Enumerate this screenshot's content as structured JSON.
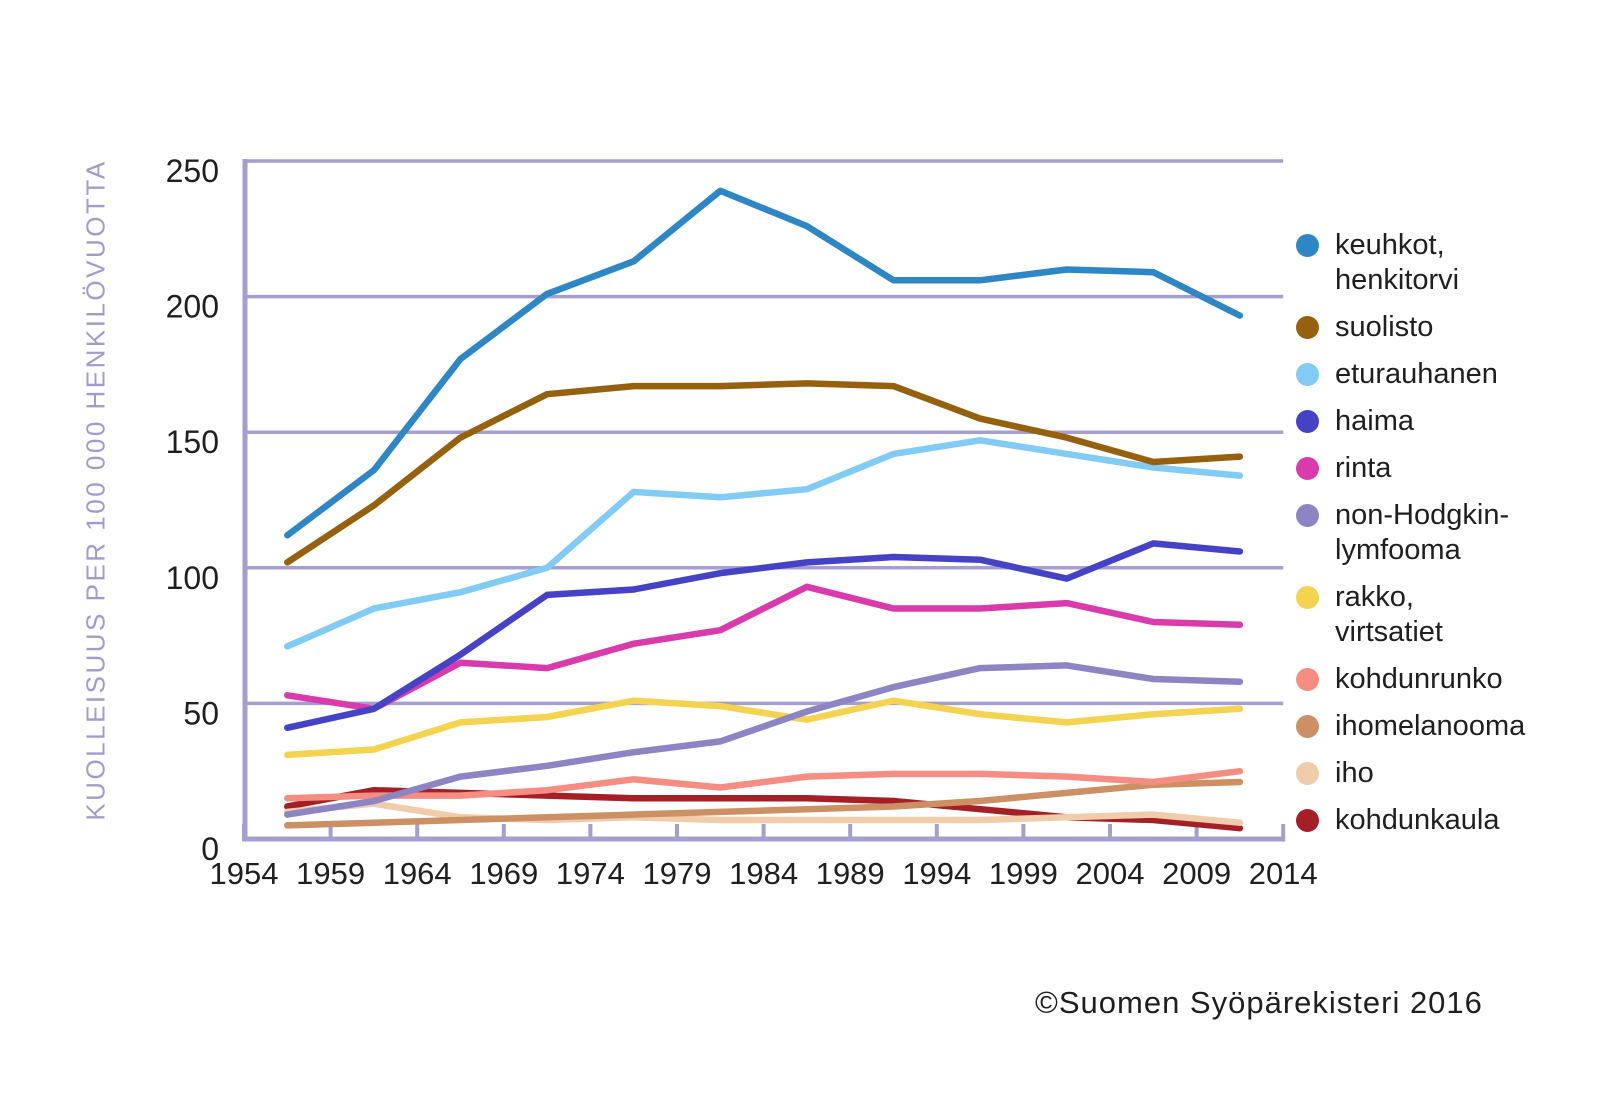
{
  "page": {
    "copyright": "©Suomen Syöpärekisteri 2016"
  },
  "colors": {
    "grid": "#a49ed1",
    "axis": "#a49ed1",
    "text": "#1f1f1f",
    "axis_title": "#a29bce",
    "background": "#ffffff"
  },
  "chart_data": {
    "type": "line",
    "title": "",
    "xlabel": "",
    "ylabel": "KUOLLEISUUS PER 100 000 HENKILÖVUOTTA",
    "grid": true,
    "legend_position": "right",
    "x_axis": {
      "range": [
        1954,
        2014
      ],
      "tick_labels": [
        "1954",
        "1959",
        "1964",
        "1969",
        "1974",
        "1979",
        "1984",
        "1989",
        "1994",
        "1999",
        "2004",
        "2009",
        "2014"
      ]
    },
    "y_axis": {
      "range": [
        0,
        250
      ],
      "ticks": [
        0,
        50,
        100,
        150,
        200,
        250
      ],
      "tick_labels": [
        "0",
        "50",
        "100",
        "150",
        "200",
        "250"
      ]
    },
    "x": [
      1956.5,
      1961.5,
      1966.5,
      1971.5,
      1976.5,
      1981.5,
      1986.5,
      1991.5,
      1996.5,
      2001.5,
      2006.5,
      2011.5
    ],
    "series": [
      {
        "name": "keuhkot, henkitorvi",
        "slug": "keuhkot-henkitorvi",
        "legend_lines": [
          "keuhkot,",
          "henkitorvi"
        ],
        "color": "#2f86c4",
        "values": [
          112,
          136,
          177,
          201,
          213,
          239,
          226,
          206,
          206,
          210,
          209,
          193
        ]
      },
      {
        "name": "suolisto",
        "slug": "suolisto",
        "legend_lines": [
          "suolisto"
        ],
        "color": "#96610f",
        "values": [
          102,
          123,
          148,
          164,
          167,
          167,
          168,
          167,
          155,
          148,
          139,
          141
        ]
      },
      {
        "name": "eturauhanen",
        "slug": "eturauhanen",
        "legend_lines": [
          "eturauhanen"
        ],
        "color": "#82cbf5",
        "values": [
          71,
          85,
          91,
          100,
          128,
          126,
          129,
          142,
          147,
          142,
          137,
          134
        ]
      },
      {
        "name": "haima",
        "slug": "haima",
        "legend_lines": [
          "haima"
        ],
        "color": "#4642c6",
        "values": [
          41,
          48,
          68,
          90,
          92,
          98,
          102,
          104,
          103,
          96,
          109,
          106
        ]
      },
      {
        "name": "rinta",
        "slug": "rinta",
        "legend_lines": [
          "rinta"
        ],
        "color": "#d93bac",
        "values": [
          53,
          48,
          65,
          63,
          72,
          77,
          93,
          85,
          85,
          87,
          80,
          79
        ]
      },
      {
        "name": "non-Hodgkin-lymfooma",
        "slug": "non-hodgkin-lymfooma",
        "legend_lines": [
          "non-Hodgkin-",
          "lymfooma"
        ],
        "color": "#8d85c3",
        "values": [
          9,
          14,
          23,
          27,
          32,
          36,
          47,
          56,
          63,
          64,
          59,
          58
        ]
      },
      {
        "name": "rakko, virtsatiet",
        "slug": "rakko-virtsatiet",
        "legend_lines": [
          "rakko,",
          "virtsatiet"
        ],
        "color": "#f4d351",
        "values": [
          31,
          33,
          43,
          45,
          51,
          49,
          44,
          51,
          46,
          43,
          46,
          48
        ]
      },
      {
        "name": "kohdunrunko",
        "slug": "kohdunrunko",
        "legend_lines": [
          "kohdunrunko"
        ],
        "color": "#f68d82",
        "values": [
          15,
          16,
          16,
          18,
          22,
          19,
          23,
          24,
          24,
          23,
          21,
          25
        ]
      },
      {
        "name": "ihomelanooma",
        "slug": "ihomelanooma",
        "legend_lines": [
          "ihomelanooma"
        ],
        "color": "#cd9064",
        "values": [
          5,
          6,
          7,
          8,
          9,
          10,
          11,
          12,
          14,
          17,
          20,
          21
        ]
      },
      {
        "name": "iho",
        "slug": "iho",
        "legend_lines": [
          "iho"
        ],
        "color": "#f1ccab",
        "values": [
          10,
          13,
          8,
          7,
          8,
          7,
          7,
          7,
          7,
          8,
          9,
          6
        ]
      },
      {
        "name": "kohdunkaula",
        "slug": "kohdunkaula",
        "legend_lines": [
          "kohdunkaula"
        ],
        "color": "#a52026",
        "values": [
          12,
          18,
          17,
          16,
          15,
          15,
          15,
          14,
          11,
          8,
          7,
          4
        ]
      }
    ]
  },
  "layout_note": "mortality line chart, Finnish Cancer Registry"
}
